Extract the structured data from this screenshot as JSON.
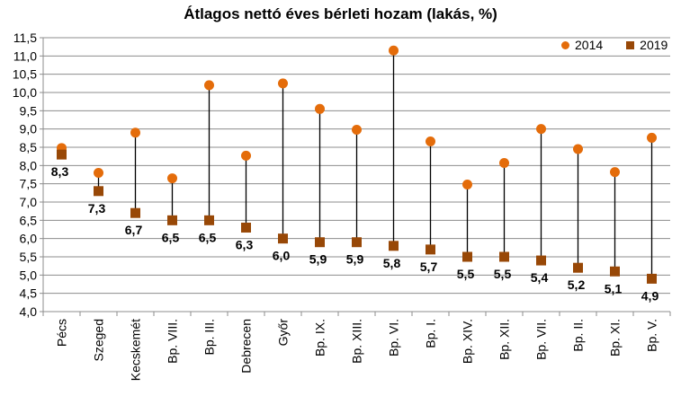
{
  "chart_data": {
    "type": "scatter",
    "subtype": "dumbbell",
    "title": "Átlagos nettó éves bérleti hozam (lakás, %)",
    "xlabel": "",
    "ylabel": "",
    "ylim": [
      4.0,
      11.5
    ],
    "ytick_step": 0.5,
    "yticks": [
      "4,0",
      "4,5",
      "5,0",
      "5,5",
      "6,0",
      "6,5",
      "7,0",
      "7,5",
      "8,0",
      "8,5",
      "9,0",
      "9,5",
      "10,0",
      "10,5",
      "11,0",
      "11,5"
    ],
    "grid": true,
    "legend_position": "top-right",
    "categories": [
      "Pécs",
      "Szeged",
      "Kecskemét",
      "Bp. VIII.",
      "Bp. III.",
      "Debrecen",
      "Győr",
      "Bp. IX.",
      "Bp. XIII.",
      "Bp. VI.",
      "Bp. I.",
      "Bp. XIV.",
      "Bp. XII.",
      "Bp. VII.",
      "Bp. II.",
      "Bp. XI.",
      "Bp. V."
    ],
    "series": [
      {
        "name": "2014",
        "marker": "circle",
        "color": "#E46C0A",
        "values": [
          8.48,
          7.8,
          8.9,
          7.65,
          10.2,
          8.27,
          10.25,
          9.55,
          8.98,
          11.15,
          8.66,
          7.48,
          8.07,
          9.0,
          8.45,
          7.82,
          8.76
        ]
      },
      {
        "name": "2019",
        "marker": "square",
        "color": "#984807",
        "values": [
          8.3,
          7.3,
          6.7,
          6.5,
          6.5,
          6.3,
          6.0,
          5.9,
          5.9,
          5.8,
          5.7,
          5.5,
          5.5,
          5.4,
          5.2,
          5.1,
          4.9
        ],
        "labels": [
          "8,3",
          "7,3",
          "6,7",
          "6,5",
          "6,5",
          "6,3",
          "6,0",
          "5,9",
          "5,9",
          "5,8",
          "5,7",
          "5,5",
          "5,5",
          "5,4",
          "5,2",
          "5,1",
          "4,9"
        ]
      }
    ]
  },
  "legend": {
    "items": [
      {
        "label": "2014",
        "color": "#E46C0A"
      },
      {
        "label": "2019",
        "color": "#984807"
      }
    ]
  }
}
